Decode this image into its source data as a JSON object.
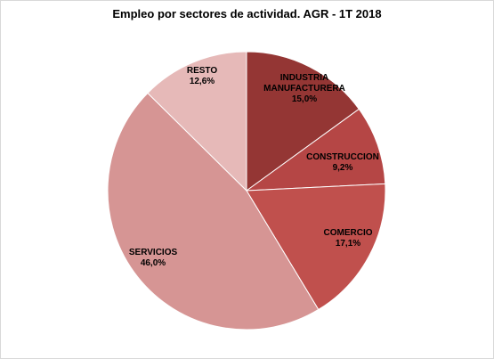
{
  "chart_data": {
    "type": "pie",
    "title": "Empleo por sectores de actividad. AGR - 1T 2018",
    "slices": [
      {
        "label": "INDUSTRIA MANUFACTURERA",
        "label_lines": [
          "INDUSTRIA",
          "MANUFACTURERA"
        ],
        "value": 15.0,
        "value_label": "15,0%",
        "color": "#943634"
      },
      {
        "label": "CONSTRUCCION",
        "label_lines": [
          "CONSTRUCCION"
        ],
        "value": 9.2,
        "value_label": "9,2%",
        "color": "#b54645"
      },
      {
        "label": "COMERCIO",
        "label_lines": [
          "COMERCIO"
        ],
        "value": 17.1,
        "value_label": "17,1%",
        "color": "#c0504d"
      },
      {
        "label": "SERVICIOS",
        "label_lines": [
          "SERVICIOS"
        ],
        "value": 46.0,
        "value_label": "46,0%",
        "color": "#d69594"
      },
      {
        "label": "RESTO",
        "label_lines": [
          "RESTO"
        ],
        "value": 12.6,
        "value_label": "12,6%",
        "color": "#e6b9b8"
      }
    ],
    "start": "12 o'clock",
    "direction": "clockwise",
    "legend": "none"
  }
}
